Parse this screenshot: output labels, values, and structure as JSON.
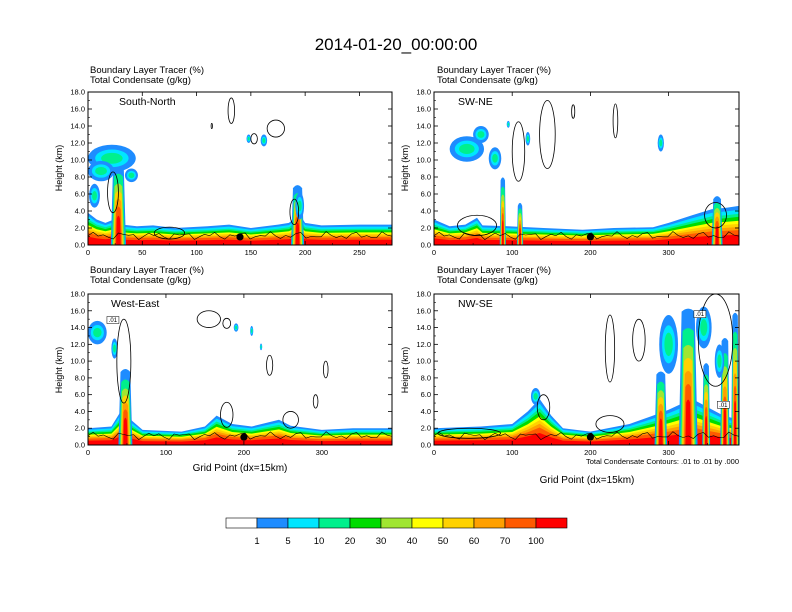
{
  "title": "2014-01-20_00:00:00",
  "chart_data": [
    {
      "type": "heatmap",
      "panel_label": "South-North",
      "subtitle_lines": [
        "Boundary Layer Tracer    (%)",
        "Total Condensate    (g/kg)"
      ],
      "ylabel": "Height (km)",
      "xlabel": "",
      "xlim": [
        0,
        280
      ],
      "ylim": [
        0,
        18
      ],
      "xticks": [
        "0",
        "50",
        "100",
        "150",
        "200",
        "250"
      ],
      "yticks": [
        "0.0",
        "2.0",
        "4.0",
        "6.0",
        "8.0",
        "10.0",
        "12.0",
        "14.0",
        "16.0",
        "18.0"
      ],
      "marker_x": 140,
      "layer_top": [
        [
          0,
          3.8
        ],
        [
          8,
          3.0
        ],
        [
          16,
          2.6
        ],
        [
          22,
          2.9
        ],
        [
          28,
          3.8
        ],
        [
          32,
          2.4
        ],
        [
          45,
          2.2
        ],
        [
          60,
          2.3
        ],
        [
          80,
          2.0
        ],
        [
          110,
          2.2
        ],
        [
          130,
          2.4
        ],
        [
          150,
          2.0
        ],
        [
          175,
          2.4
        ],
        [
          185,
          2.6
        ],
        [
          195,
          3.6
        ],
        [
          200,
          2.6
        ],
        [
          215,
          2.3
        ],
        [
          250,
          2.4
        ],
        [
          280,
          2.4
        ]
      ],
      "plumes": [
        {
          "x": 28,
          "w": 7,
          "top": 9.0
        },
        {
          "x": 193,
          "w": 6,
          "top": 6.3
        }
      ],
      "upper_blobs": [
        {
          "x": 22,
          "y": 10.2,
          "rx": 22,
          "ry": 1.6
        },
        {
          "x": 12,
          "y": 8.7,
          "rx": 12,
          "ry": 1.2
        },
        {
          "x": 6,
          "y": 5.8,
          "rx": 5,
          "ry": 1.4
        },
        {
          "x": 40,
          "y": 8.2,
          "rx": 6,
          "ry": 0.8
        },
        {
          "x": 162,
          "y": 12.3,
          "rx": 3,
          "ry": 0.7
        },
        {
          "x": 148,
          "y": 12.5,
          "rx": 2,
          "ry": 0.5
        },
        {
          "x": 195,
          "y": 4.6,
          "rx": 4,
          "ry": 1.6
        }
      ],
      "contours": [
        {
          "x": 132,
          "y": 15.8,
          "rx": 3,
          "ry": 1.5
        },
        {
          "x": 173,
          "y": 13.7,
          "rx": 8,
          "ry": 1.0
        },
        {
          "x": 153,
          "y": 12.5,
          "rx": 3,
          "ry": 0.6
        },
        {
          "x": 114,
          "y": 14.0,
          "rx": 0.6,
          "ry": 0.3
        },
        {
          "x": 23,
          "y": 6.2,
          "rx": 5,
          "ry": 2.4
        },
        {
          "x": 75,
          "y": 1.4,
          "rx": 14,
          "ry": 0.7
        },
        {
          "x": 190,
          "y": 3.9,
          "rx": 4,
          "ry": 1.5
        }
      ],
      "contour_labels": []
    },
    {
      "type": "heatmap",
      "panel_label": "SW-NE",
      "subtitle_lines": [
        "Boundary Layer Tracer    (%)",
        "Total Condensate    (g/kg)"
      ],
      "ylabel": "Height (km)",
      "xlabel": "",
      "xlim": [
        0,
        390
      ],
      "ylim": [
        0,
        18
      ],
      "xticks": [
        "0",
        "100",
        "200",
        "300"
      ],
      "yticks": [
        "0.0",
        "2.0",
        "4.0",
        "6.0",
        "8.0",
        "10.0",
        "12.0",
        "14.0",
        "16.0",
        "18.0"
      ],
      "marker_x": 200,
      "layer_top": [
        [
          0,
          3.0
        ],
        [
          20,
          2.2
        ],
        [
          40,
          2.4
        ],
        [
          55,
          3.2
        ],
        [
          62,
          2.3
        ],
        [
          95,
          2.2
        ],
        [
          140,
          2.0
        ],
        [
          190,
          1.8
        ],
        [
          230,
          2.0
        ],
        [
          280,
          2.1
        ],
        [
          300,
          2.6
        ],
        [
          330,
          3.5
        ],
        [
          355,
          4.2
        ],
        [
          375,
          4.4
        ],
        [
          390,
          4.6
        ]
      ],
      "plumes": [
        {
          "x": 88,
          "w": 4,
          "top": 7.2
        },
        {
          "x": 110,
          "w": 4,
          "top": 4.2
        },
        {
          "x": 362,
          "w": 7,
          "top": 5.0
        }
      ],
      "upper_blobs": [
        {
          "x": 42,
          "y": 11.3,
          "rx": 22,
          "ry": 1.5
        },
        {
          "x": 60,
          "y": 13.0,
          "rx": 10,
          "ry": 1.0
        },
        {
          "x": 78,
          "y": 10.2,
          "rx": 8,
          "ry": 1.3
        },
        {
          "x": 120,
          "y": 12.5,
          "rx": 3,
          "ry": 0.8
        },
        {
          "x": 95,
          "y": 14.2,
          "rx": 2,
          "ry": 0.4
        },
        {
          "x": 290,
          "y": 12.0,
          "rx": 4,
          "ry": 1.0
        }
      ],
      "contours": [
        {
          "x": 108,
          "y": 11.0,
          "rx": 8,
          "ry": 3.5
        },
        {
          "x": 145,
          "y": 13.0,
          "rx": 10,
          "ry": 4.0
        },
        {
          "x": 178,
          "y": 15.7,
          "rx": 2,
          "ry": 0.8
        },
        {
          "x": 232,
          "y": 14.6,
          "rx": 3,
          "ry": 2.0
        },
        {
          "x": 55,
          "y": 2.3,
          "rx": 25,
          "ry": 1.2
        },
        {
          "x": 360,
          "y": 3.5,
          "rx": 14,
          "ry": 1.5
        }
      ],
      "contour_labels": []
    },
    {
      "type": "heatmap",
      "panel_label": "West-East",
      "subtitle_lines": [
        "Boundary Layer Tracer    (%)",
        "Total Condensate    (g/kg)"
      ],
      "ylabel": "Height (km)",
      "xlabel": "Grid Point (dx=15km)",
      "xlim": [
        0,
        390
      ],
      "ylim": [
        0,
        18
      ],
      "xticks": [
        "0",
        "100",
        "200",
        "300"
      ],
      "yticks": [
        "0.0",
        "2.0",
        "4.0",
        "6.0",
        "8.0",
        "10.0",
        "12.0",
        "14.0",
        "16.0",
        "18.0"
      ],
      "marker_x": 200,
      "layer_top": [
        [
          0,
          2.0
        ],
        [
          30,
          2.2
        ],
        [
          42,
          4.0
        ],
        [
          55,
          3.0
        ],
        [
          70,
          1.8
        ],
        [
          120,
          1.6
        ],
        [
          150,
          2.2
        ],
        [
          165,
          3.5
        ],
        [
          185,
          2.5
        ],
        [
          210,
          2.2
        ],
        [
          245,
          3.0
        ],
        [
          260,
          2.3
        ],
        [
          300,
          1.8
        ],
        [
          340,
          2.0
        ],
        [
          390,
          2.0
        ]
      ],
      "plumes": [
        {
          "x": 48,
          "w": 9,
          "top": 8.3
        }
      ],
      "upper_blobs": [
        {
          "x": 12,
          "y": 13.4,
          "rx": 12,
          "ry": 1.4
        },
        {
          "x": 34,
          "y": 11.5,
          "rx": 4,
          "ry": 1.2
        },
        {
          "x": 210,
          "y": 13.6,
          "rx": 2,
          "ry": 0.6
        },
        {
          "x": 222,
          "y": 11.7,
          "rx": 1.5,
          "ry": 0.4
        },
        {
          "x": 190,
          "y": 14.0,
          "rx": 3,
          "ry": 0.5
        }
      ],
      "contours": [
        {
          "x": 46,
          "y": 10.0,
          "rx": 9,
          "ry": 5.0
        },
        {
          "x": 155,
          "y": 15.0,
          "rx": 15,
          "ry": 1.0
        },
        {
          "x": 178,
          "y": 14.5,
          "rx": 5,
          "ry": 0.6
        },
        {
          "x": 233,
          "y": 9.5,
          "rx": 4,
          "ry": 1.2
        },
        {
          "x": 305,
          "y": 9.0,
          "rx": 3,
          "ry": 1.0
        },
        {
          "x": 292,
          "y": 5.2,
          "rx": 3,
          "ry": 0.8
        },
        {
          "x": 178,
          "y": 3.6,
          "rx": 8,
          "ry": 1.5
        },
        {
          "x": 260,
          "y": 3.0,
          "rx": 10,
          "ry": 1.0
        }
      ],
      "contour_labels": [
        {
          "x": 32,
          "y": 14.6,
          "text": ".01"
        }
      ]
    },
    {
      "type": "heatmap",
      "panel_label": "NW-SE",
      "subtitle_lines": [
        "Boundary Layer Tracer    (%)",
        "Total Condensate    (g/kg)"
      ],
      "ylabel": "Height (km)",
      "xlabel": "Grid Point (dx=15km)",
      "xlim": [
        0,
        390
      ],
      "ylim": [
        0,
        18
      ],
      "xticks": [
        "0",
        "100",
        "200",
        "300"
      ],
      "yticks": [
        "0.0",
        "2.0",
        "4.0",
        "6.0",
        "8.0",
        "10.0",
        "12.0",
        "14.0",
        "16.0",
        "18.0"
      ],
      "marker_x": 200,
      "layer_top": [
        [
          0,
          2.0
        ],
        [
          60,
          2.2
        ],
        [
          100,
          2.5
        ],
        [
          120,
          4.0
        ],
        [
          135,
          5.5
        ],
        [
          150,
          3.5
        ],
        [
          165,
          2.0
        ],
        [
          200,
          1.6
        ],
        [
          250,
          2.5
        ],
        [
          280,
          3.5
        ],
        [
          300,
          4.2
        ],
        [
          330,
          5.5
        ],
        [
          350,
          4.5
        ],
        [
          370,
          3.5
        ],
        [
          390,
          3.0
        ]
      ],
      "plumes": [
        {
          "x": 325,
          "w": 12,
          "top": 15.5
        },
        {
          "x": 348,
          "w": 5,
          "top": 9.0
        },
        {
          "x": 372,
          "w": 6,
          "top": 12.0
        },
        {
          "x": 385,
          "w": 5,
          "top": 15.0
        },
        {
          "x": 290,
          "w": 8,
          "top": 8.0
        }
      ],
      "upper_blobs": [
        {
          "x": 300,
          "y": 12.0,
          "rx": 12,
          "ry": 3.5
        },
        {
          "x": 345,
          "y": 14.0,
          "rx": 10,
          "ry": 2.5
        },
        {
          "x": 130,
          "y": 5.8,
          "rx": 6,
          "ry": 1.0
        },
        {
          "x": 365,
          "y": 10.0,
          "rx": 6,
          "ry": 2.0
        }
      ],
      "contours": [
        {
          "x": 225,
          "y": 11.5,
          "rx": 6,
          "ry": 4.0
        },
        {
          "x": 262,
          "y": 12.5,
          "rx": 8,
          "ry": 2.5
        },
        {
          "x": 360,
          "y": 12.5,
          "rx": 22,
          "ry": 5.5
        },
        {
          "x": 140,
          "y": 4.5,
          "rx": 8,
          "ry": 1.5
        },
        {
          "x": 45,
          "y": 1.4,
          "rx": 40,
          "ry": 0.6
        },
        {
          "x": 225,
          "y": 2.5,
          "rx": 18,
          "ry": 1.0
        }
      ],
      "contour_labels": [
        {
          "x": 340,
          "y": 15.3,
          "text": ".01"
        },
        {
          "x": 370,
          "y": 4.5,
          "text": ".01"
        }
      ]
    }
  ],
  "note": "Total Condensate Contours: .01 to .01 by .000",
  "colorbar": {
    "colors": [
      "#ffffff",
      "#1e8cff",
      "#00e6ff",
      "#00f08c",
      "#00dc00",
      "#a0e632",
      "#ffff00",
      "#ffd200",
      "#ffa000",
      "#ff5a00",
      "#ff0000"
    ],
    "labels": [
      "1",
      "5",
      "10",
      "20",
      "30",
      "40",
      "50",
      "60",
      "70",
      "100"
    ]
  }
}
